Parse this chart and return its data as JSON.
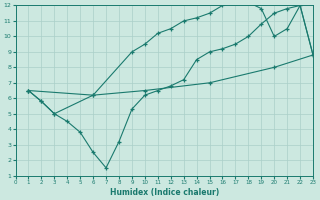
{
  "xlabel": "Humidex (Indice chaleur)",
  "bg_color": "#cce8e0",
  "line_color": "#1a7a6e",
  "grid_color": "#aacfc8",
  "xlim": [
    0,
    23
  ],
  "ylim": [
    1,
    12
  ],
  "xticks": [
    0,
    1,
    2,
    3,
    4,
    5,
    6,
    7,
    8,
    9,
    10,
    11,
    12,
    13,
    14,
    15,
    16,
    17,
    18,
    19,
    20,
    21,
    22,
    23
  ],
  "yticks": [
    1,
    2,
    3,
    4,
    5,
    6,
    7,
    8,
    9,
    10,
    11,
    12
  ],
  "line1_x": [
    1,
    2,
    3,
    4,
    5,
    6,
    7,
    8,
    9,
    10,
    11,
    12,
    13,
    14,
    15,
    16,
    17,
    18,
    19,
    20,
    21,
    22,
    23
  ],
  "line1_y": [
    6.5,
    5.8,
    5.0,
    4.5,
    3.8,
    2.5,
    1.5,
    3.2,
    5.3,
    6.2,
    6.5,
    6.8,
    7.2,
    8.5,
    9.0,
    9.2,
    9.5,
    10.0,
    10.8,
    11.5,
    11.8,
    12.0,
    8.8
  ],
  "line2_x": [
    1,
    2,
    3,
    6,
    9,
    10,
    11,
    12,
    13,
    14,
    15,
    16,
    17,
    18,
    19,
    20,
    21,
    22,
    23
  ],
  "line2_y": [
    6.5,
    5.8,
    5.0,
    6.2,
    9.0,
    9.5,
    10.2,
    10.5,
    11.0,
    11.2,
    11.5,
    12.0,
    12.2,
    12.2,
    11.8,
    10.0,
    10.5,
    12.0,
    8.8
  ],
  "line3_x": [
    1,
    6,
    10,
    15,
    20,
    23
  ],
  "line3_y": [
    6.5,
    6.2,
    6.5,
    7.0,
    8.0,
    8.8
  ]
}
